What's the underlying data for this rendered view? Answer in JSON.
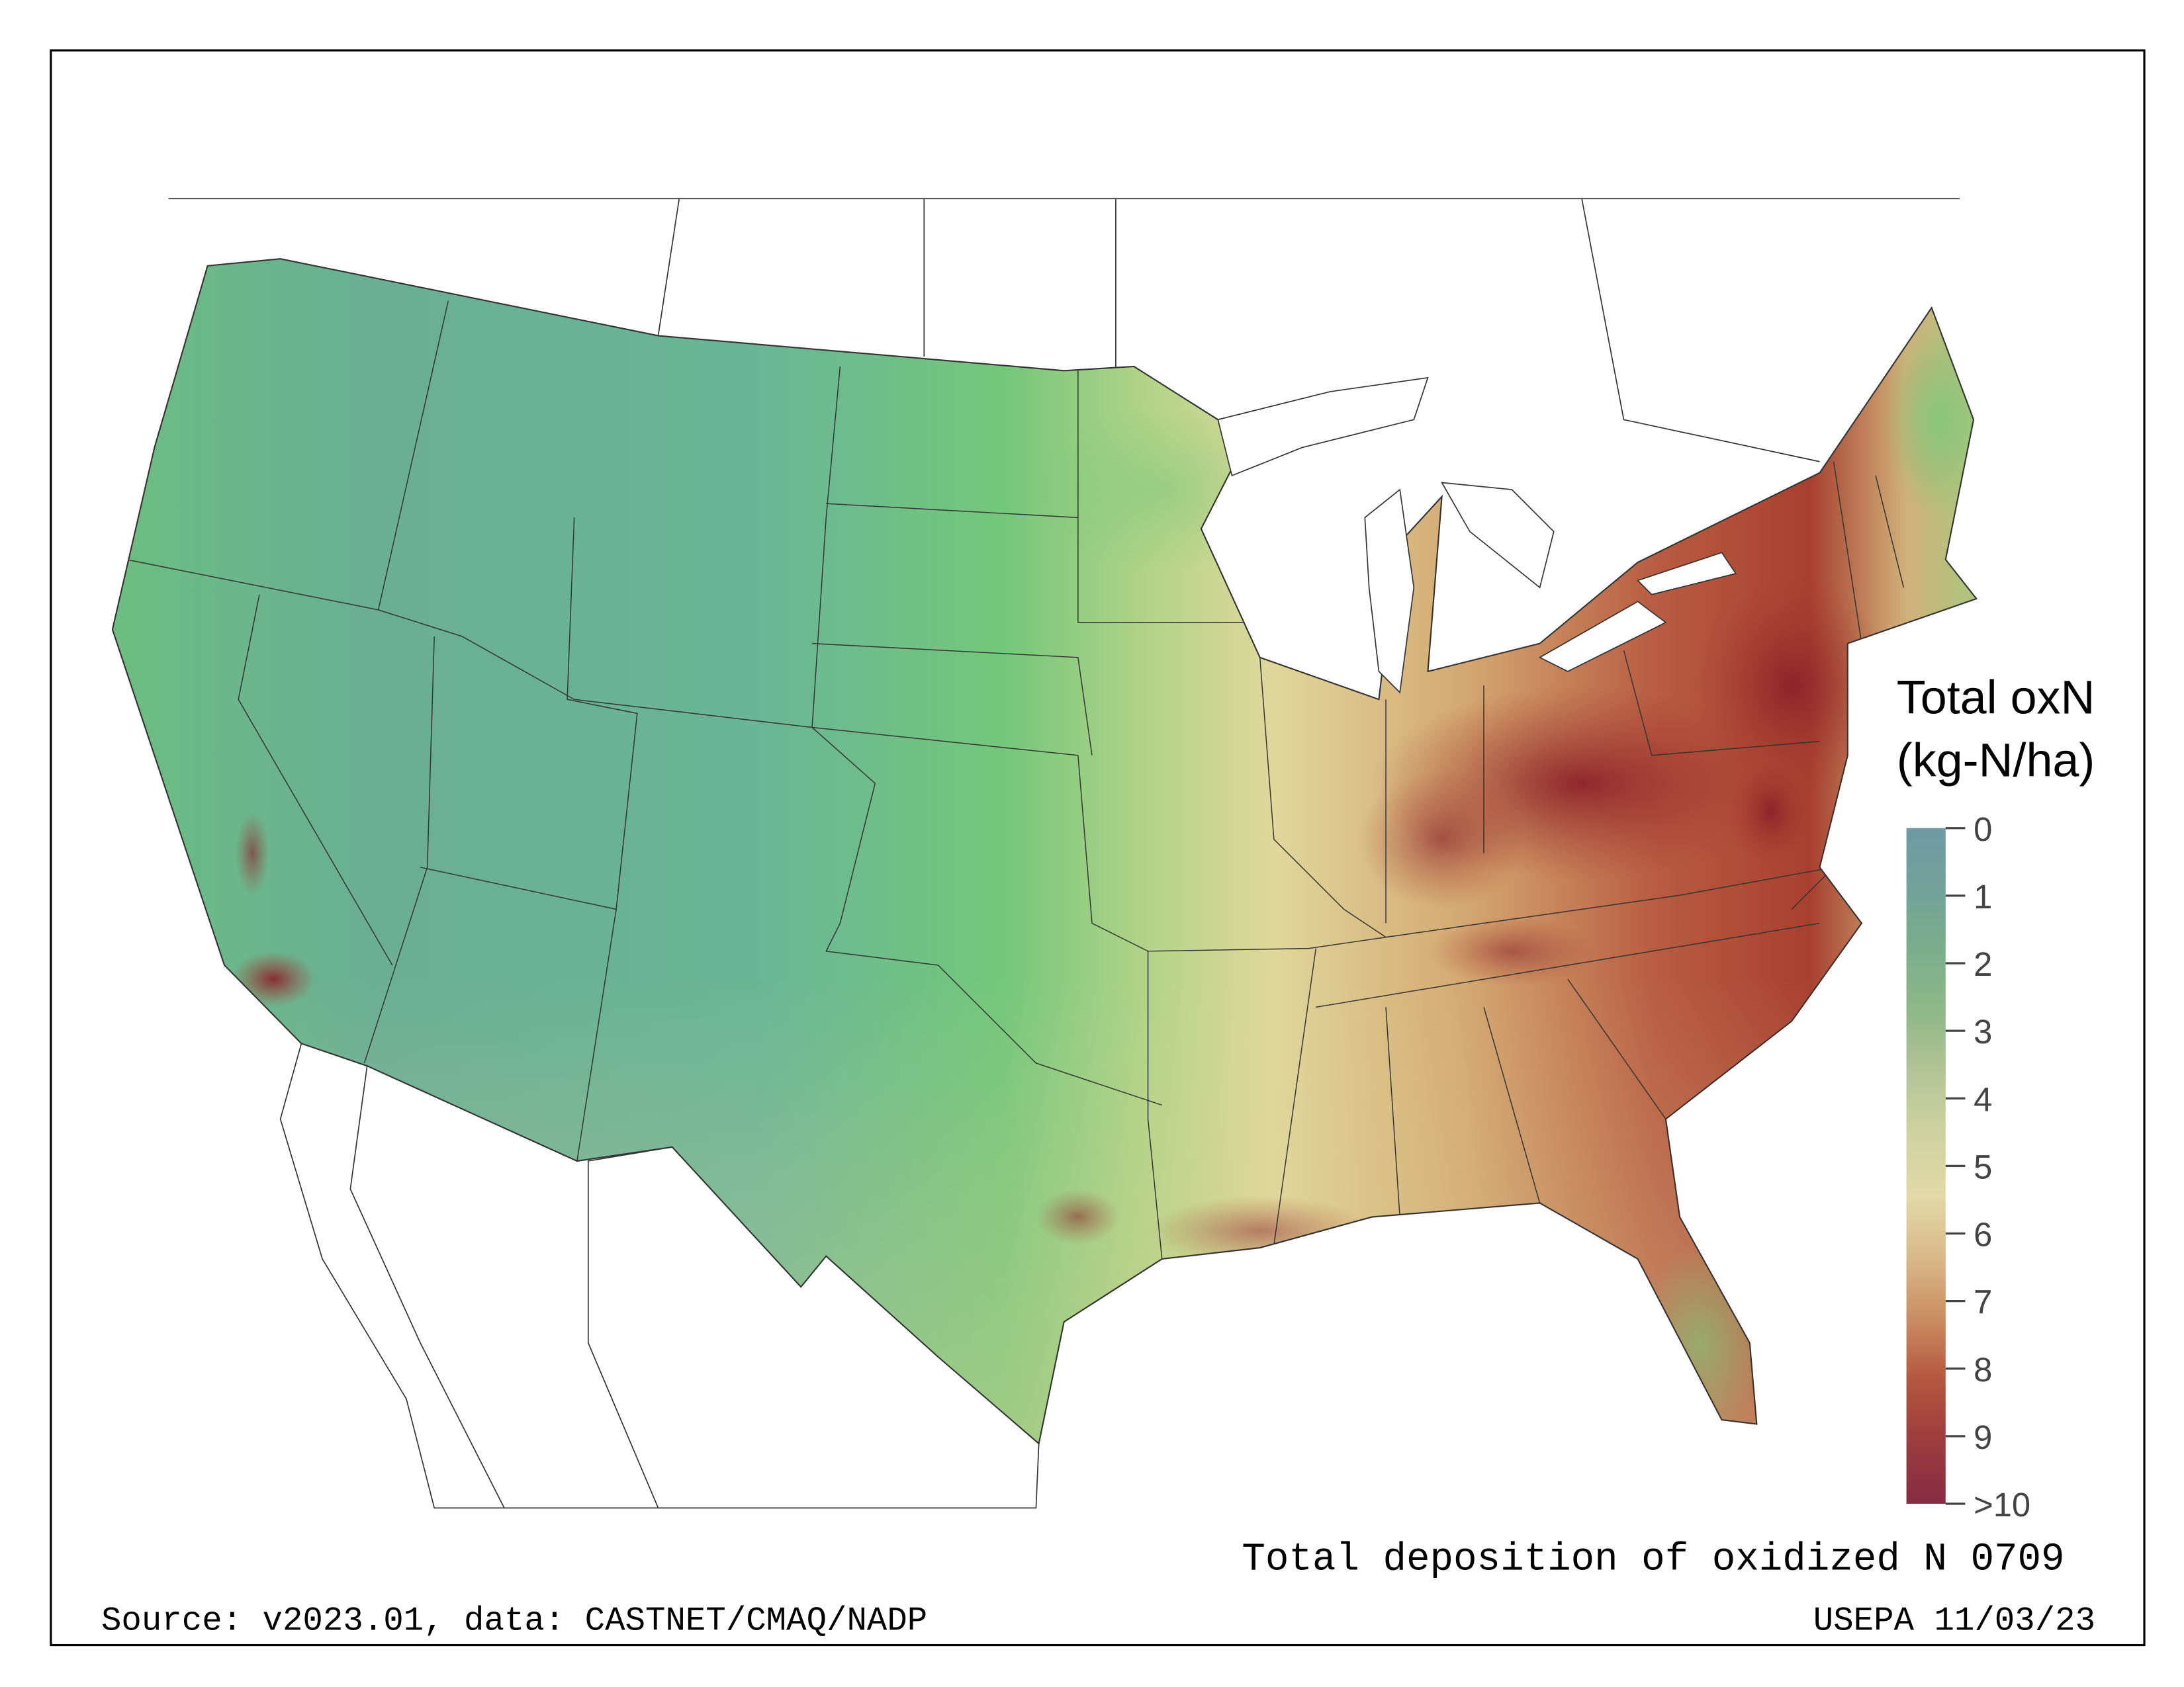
{
  "legend": {
    "title_line1": "Total oxN",
    "title_line2": "(kg-N/ha)",
    "ticks": [
      "0",
      "1",
      "2",
      "3",
      "4",
      "5",
      "6",
      "7",
      "8",
      "9",
      ">10"
    ],
    "colors": [
      "#6e9aa4",
      "#72a29a",
      "#7aae8a",
      "#8fb888",
      "#b4c496",
      "#cfd3a0",
      "#e2d9a6",
      "#d9b888",
      "#c98c62",
      "#b5563e",
      "#9c3c3e",
      "#862c44"
    ]
  },
  "map": {
    "title": "Total deposition of oxidized N 0709",
    "source": "Source: v2023.01, data: CASTNET/CMAQ/NADP",
    "credit": "USEPA 11/03/23"
  }
}
